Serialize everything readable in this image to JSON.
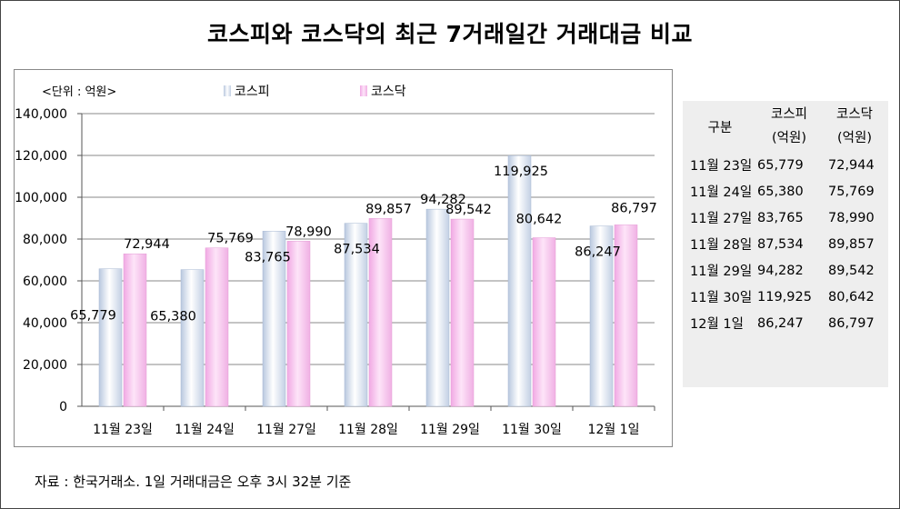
{
  "title": "코스피와 코스닥의 최근 7거래일간 거래대금 비교",
  "unit_label": "<단위 : 억원>",
  "source_note": "자료 : 한국거래소. 1일 거래대금은 오후 3시 32분 기준",
  "colors": {
    "kospi": "#dde6f3",
    "kosdaq": "#f6c6ee"
  },
  "chart_data": {
    "type": "bar",
    "categories": [
      "11월 23일",
      "11월 24일",
      "11월 27일",
      "11월 28일",
      "11월 29일",
      "11월 30일",
      "12월 1일"
    ],
    "series": [
      {
        "name": "코스피",
        "values": [
          65779,
          65380,
          83765,
          87534,
          94282,
          119925,
          86247
        ]
      },
      {
        "name": "코스닥",
        "values": [
          72944,
          75769,
          78990,
          89857,
          89542,
          80642,
          86797
        ]
      }
    ],
    "value_labels": {
      "코스피": [
        "65,779",
        "65,380",
        "83,765",
        "87,534",
        "94,282",
        "119,925",
        "86,247"
      ],
      "코스닥": [
        "72,944",
        "75,769",
        "78,990",
        "89,857",
        "89,542",
        "80,642",
        "86,797"
      ]
    },
    "yticks": [
      "0",
      "20,000",
      "40,000",
      "60,000",
      "80,000",
      "100,000",
      "120,000",
      "140,000"
    ],
    "ylim": [
      0,
      140000
    ],
    "grid": true,
    "legend": "top"
  },
  "table": {
    "header_date": "구분",
    "header_kospi": [
      "코스피",
      "(억원)"
    ],
    "header_kosdaq": [
      "코스닥",
      "(억원)"
    ],
    "rows": [
      [
        "11월 23일",
        "65,779",
        "72,944"
      ],
      [
        "11월 24일",
        "65,380",
        "75,769"
      ],
      [
        "11월 27일",
        "83,765",
        "78,990"
      ],
      [
        "11월 28일",
        "87,534",
        "89,857"
      ],
      [
        "11월 29일",
        "94,282",
        "89,542"
      ],
      [
        "11월 30일",
        "119,925",
        "80,642"
      ],
      [
        "12월 1일",
        "86,247",
        "86,797"
      ]
    ]
  }
}
